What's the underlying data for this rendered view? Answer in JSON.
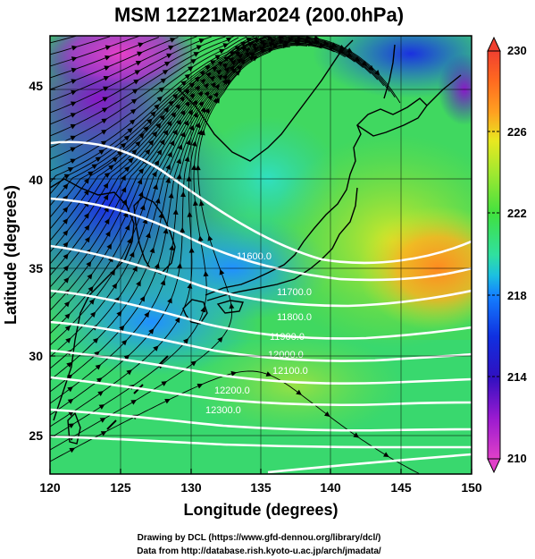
{
  "title": "MSM 12Z21Mar2024 (200.0hPa)",
  "x_axis": {
    "label": "Longitude (degrees)",
    "ticks": [
      "120",
      "125",
      "130",
      "135",
      "140",
      "145",
      "150"
    ]
  },
  "y_axis": {
    "label": "Latitude  (degrees)",
    "ticks": [
      "25",
      "30",
      "35",
      "40",
      "45"
    ]
  },
  "colorbar": {
    "labels": [
      "230",
      "226",
      "222",
      "218",
      "214",
      "210"
    ],
    "min": 210,
    "max": 230,
    "colors": [
      "#e040c8",
      "#9a1ad0",
      "#3010c0",
      "#1030e0",
      "#1480ff",
      "#1cc0e0",
      "#30e0a0",
      "#40e040",
      "#a0e830",
      "#e8e820",
      "#ffa020",
      "#ff6820",
      "#f04030"
    ]
  },
  "contours": {
    "labels": [
      "11600.0",
      "11700.0",
      "11800.0",
      "11900.0",
      "12000.0",
      "12100.0",
      "12200.0",
      "12300.0"
    ]
  },
  "credits": {
    "line1": "Drawing by DCL (https://www.gfd-dennou.org/library/dcl/)",
    "line2": "Data from http://database.rish.kyoto-u.ac.jp/arch/jmadata/"
  },
  "map": {
    "lon_range": [
      120,
      150
    ],
    "lat_range": [
      22.5,
      48
    ]
  }
}
